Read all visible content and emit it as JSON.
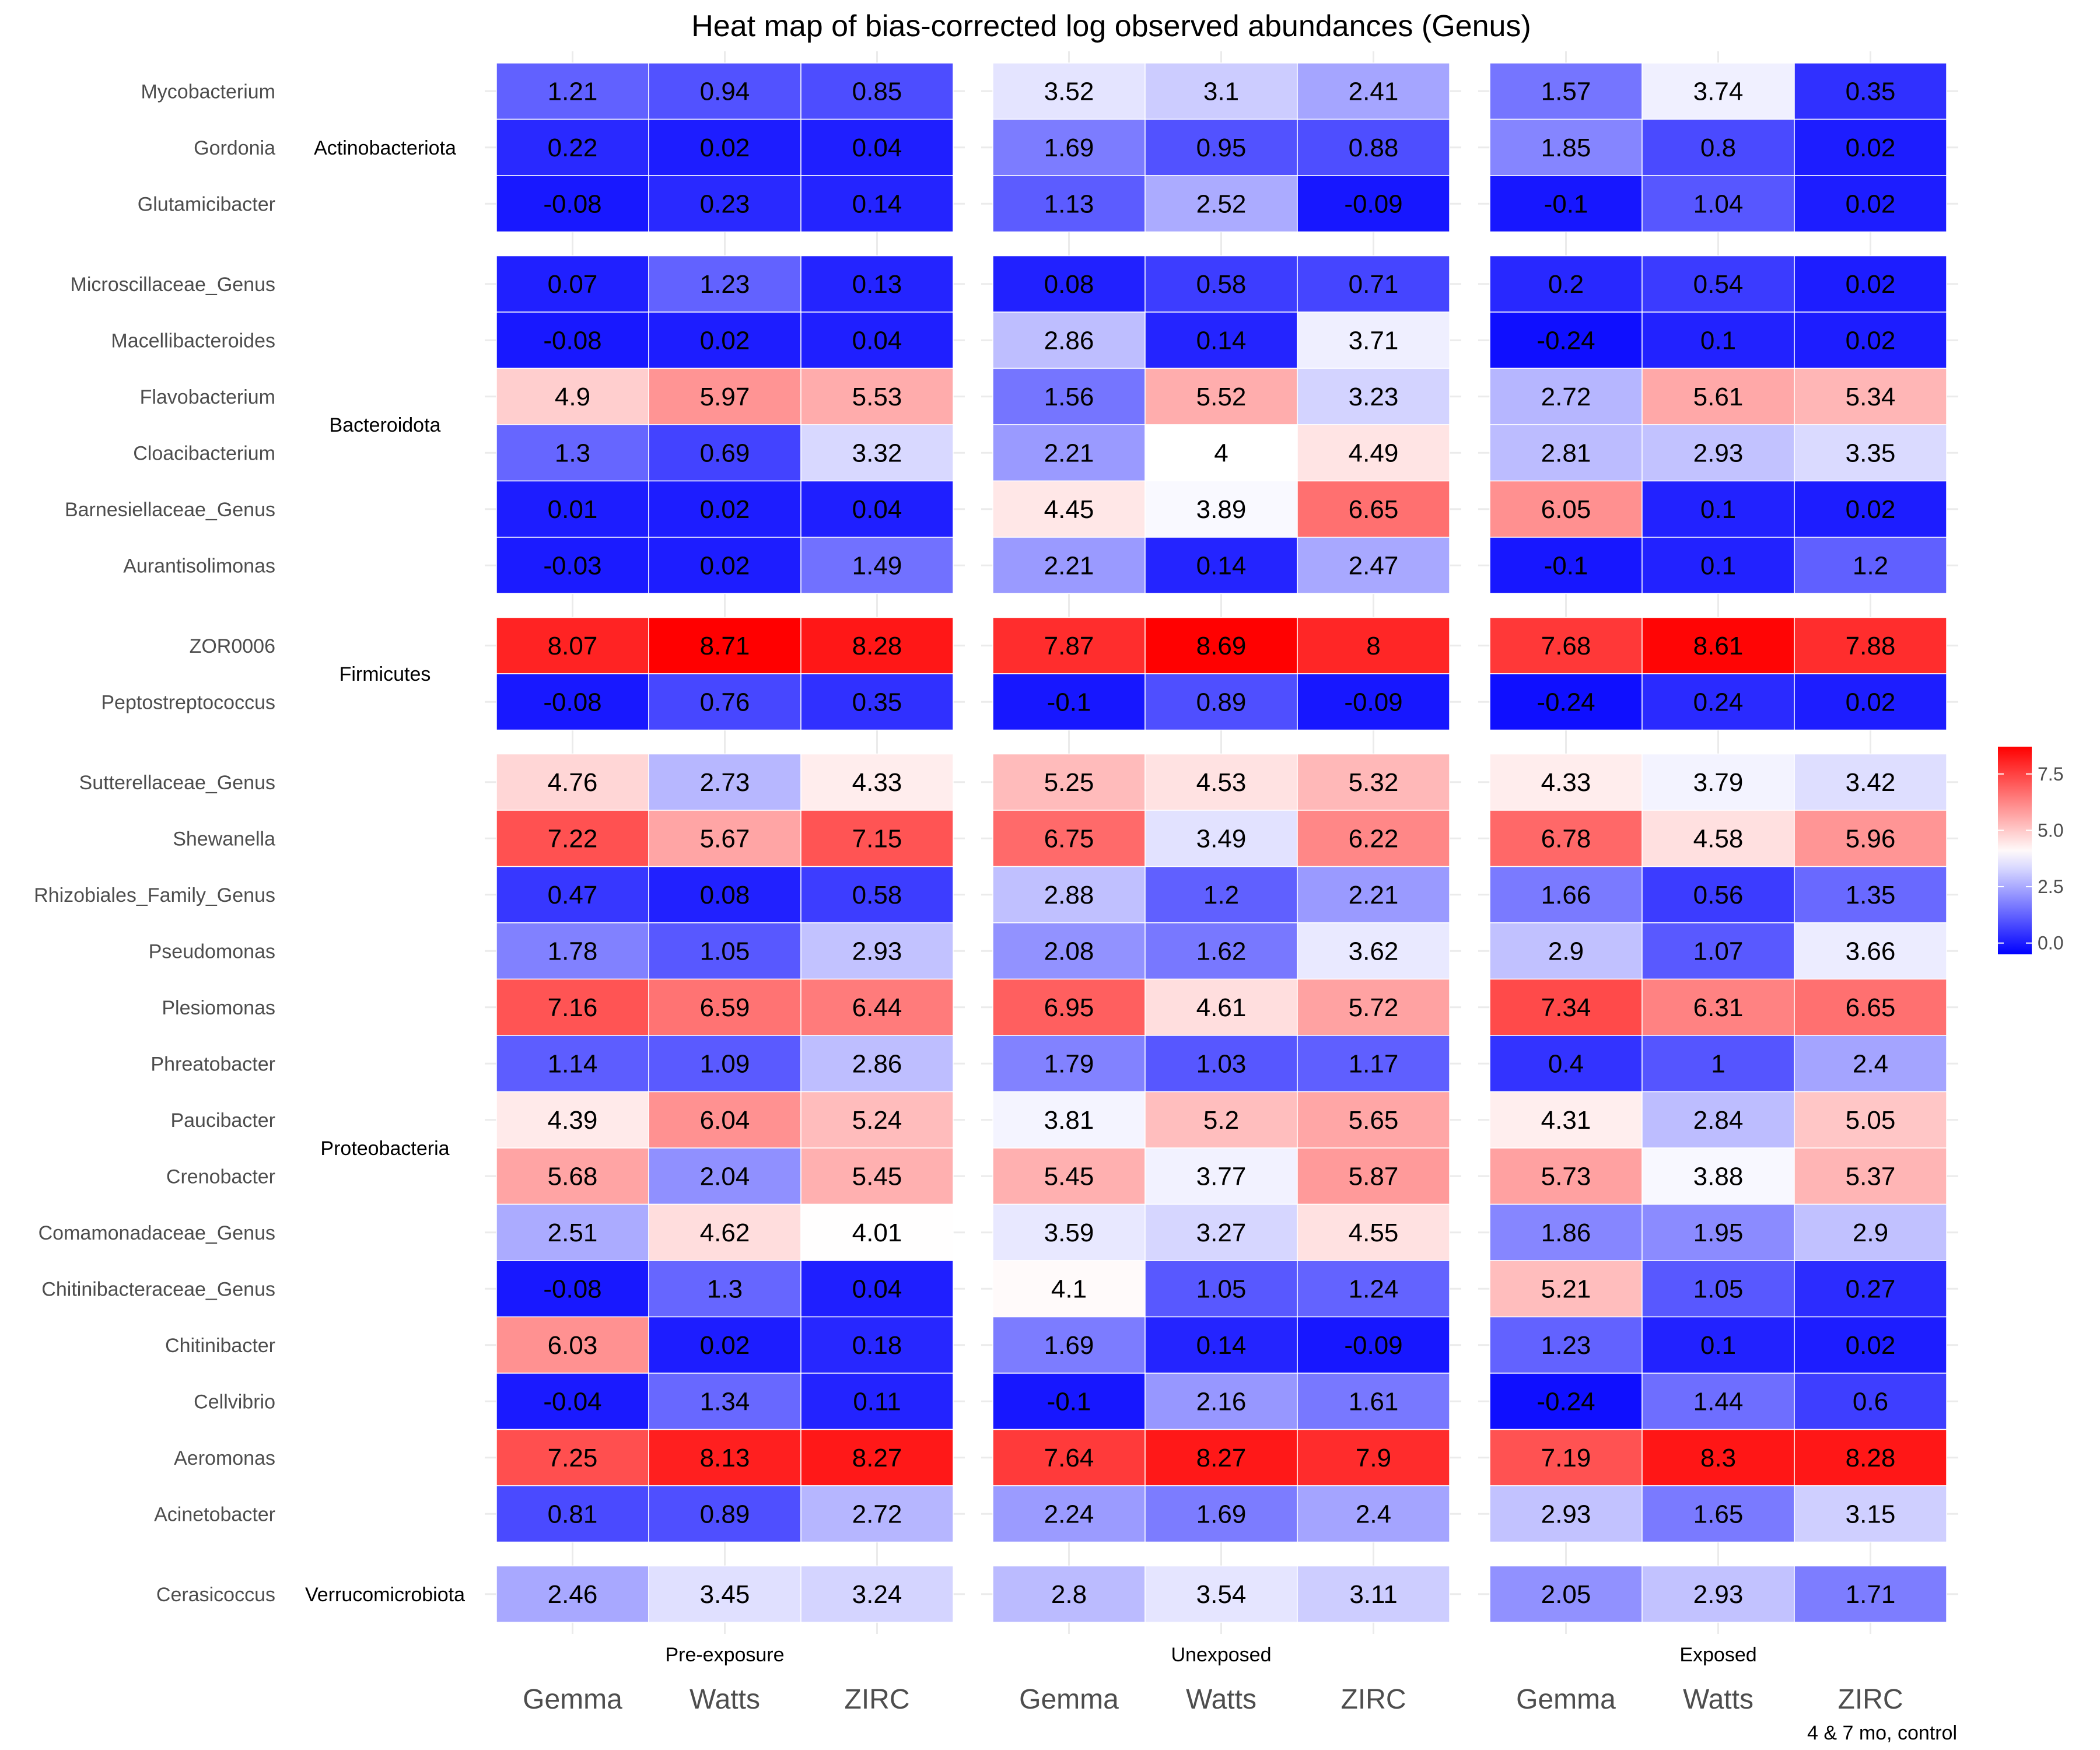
{
  "chart_data": {
    "type": "heatmap",
    "title": "Heat map of bias-corrected log observed abundances (Genus)",
    "caption": "4 & 7 mo, control",
    "x_categories": [
      "Gemma",
      "Watts",
      "ZIRC"
    ],
    "facets": [
      "Pre-exposure",
      "Unexposed",
      "Exposed"
    ],
    "color_scale": {
      "low": "#0000ff",
      "mid": "#ffffff",
      "high": "#ff0000",
      "low_value": -0.5,
      "mid_value": 4,
      "high_value": 8.71,
      "legend_ticks": [
        0,
        2.5,
        5,
        7.5
      ],
      "legend_tick_labels": [
        "0.0",
        "2.5",
        "5.0",
        "7.5"
      ]
    },
    "groups": [
      {
        "phylum": "Actinobacteriota",
        "rows": [
          {
            "genus": "Mycobacterium",
            "values": [
              [
                "1.21",
                "0.94",
                "0.85"
              ],
              [
                "3.52",
                "3.1",
                "2.41"
              ],
              [
                "1.57",
                "3.74",
                "0.35"
              ]
            ]
          },
          {
            "genus": "Gordonia",
            "values": [
              [
                "0.22",
                "0.02",
                "0.04"
              ],
              [
                "1.69",
                "0.95",
                "0.88"
              ],
              [
                "1.85",
                "0.8",
                "0.02"
              ]
            ]
          },
          {
            "genus": "Glutamicibacter",
            "values": [
              [
                "-0.08",
                "0.23",
                "0.14"
              ],
              [
                "1.13",
                "2.52",
                "-0.09"
              ],
              [
                "-0.1",
                "1.04",
                "0.02"
              ]
            ]
          }
        ]
      },
      {
        "phylum": "Bacteroidota",
        "rows": [
          {
            "genus": "Microscillaceae_Genus",
            "values": [
              [
                "0.07",
                "1.23",
                "0.13"
              ],
              [
                "0.08",
                "0.58",
                "0.71"
              ],
              [
                "0.2",
                "0.54",
                "0.02"
              ]
            ]
          },
          {
            "genus": "Macellibacteroides",
            "values": [
              [
                "-0.08",
                "0.02",
                "0.04"
              ],
              [
                "2.86",
                "0.14",
                "3.71"
              ],
              [
                "-0.24",
                "0.1",
                "0.02"
              ]
            ]
          },
          {
            "genus": "Flavobacterium",
            "values": [
              [
                "4.9",
                "5.97",
                "5.53"
              ],
              [
                "1.56",
                "5.52",
                "3.23"
              ],
              [
                "2.72",
                "5.61",
                "5.34"
              ]
            ]
          },
          {
            "genus": "Cloacibacterium",
            "values": [
              [
                "1.3",
                "0.69",
                "3.32"
              ],
              [
                "2.21",
                "4",
                "4.49"
              ],
              [
                "2.81",
                "2.93",
                "3.35"
              ]
            ]
          },
          {
            "genus": "Barnesiellaceae_Genus",
            "values": [
              [
                "0.01",
                "0.02",
                "0.04"
              ],
              [
                "4.45",
                "3.89",
                "6.65"
              ],
              [
                "6.05",
                "0.1",
                "0.02"
              ]
            ]
          },
          {
            "genus": "Aurantisolimonas",
            "values": [
              [
                "-0.03",
                "0.02",
                "1.49"
              ],
              [
                "2.21",
                "0.14",
                "2.47"
              ],
              [
                "-0.1",
                "0.1",
                "1.2"
              ]
            ]
          }
        ]
      },
      {
        "phylum": "Firmicutes",
        "rows": [
          {
            "genus": "ZOR0006",
            "values": [
              [
                "8.07",
                "8.71",
                "8.28"
              ],
              [
                "7.87",
                "8.69",
                "8"
              ],
              [
                "7.68",
                "8.61",
                "7.88"
              ]
            ]
          },
          {
            "genus": "Peptostreptococcus",
            "values": [
              [
                "-0.08",
                "0.76",
                "0.35"
              ],
              [
                "-0.1",
                "0.89",
                "-0.09"
              ],
              [
                "-0.24",
                "0.24",
                "0.02"
              ]
            ]
          }
        ]
      },
      {
        "phylum": "Proteobacteria",
        "rows": [
          {
            "genus": "Sutterellaceae_Genus",
            "values": [
              [
                "4.76",
                "2.73",
                "4.33"
              ],
              [
                "5.25",
                "4.53",
                "5.32"
              ],
              [
                "4.33",
                "3.79",
                "3.42"
              ]
            ]
          },
          {
            "genus": "Shewanella",
            "values": [
              [
                "7.22",
                "5.67",
                "7.15"
              ],
              [
                "6.75",
                "3.49",
                "6.22"
              ],
              [
                "6.78",
                "4.58",
                "5.96"
              ]
            ]
          },
          {
            "genus": "Rhizobiales_Family_Genus",
            "values": [
              [
                "0.47",
                "0.08",
                "0.58"
              ],
              [
                "2.88",
                "1.2",
                "2.21"
              ],
              [
                "1.66",
                "0.56",
                "1.35"
              ]
            ]
          },
          {
            "genus": "Pseudomonas",
            "values": [
              [
                "1.78",
                "1.05",
                "2.93"
              ],
              [
                "2.08",
                "1.62",
                "3.62"
              ],
              [
                "2.9",
                "1.07",
                "3.66"
              ]
            ]
          },
          {
            "genus": "Plesiomonas",
            "values": [
              [
                "7.16",
                "6.59",
                "6.44"
              ],
              [
                "6.95",
                "4.61",
                "5.72"
              ],
              [
                "7.34",
                "6.31",
                "6.65"
              ]
            ]
          },
          {
            "genus": "Phreatobacter",
            "values": [
              [
                "1.14",
                "1.09",
                "2.86"
              ],
              [
                "1.79",
                "1.03",
                "1.17"
              ],
              [
                "0.4",
                "1",
                "2.4"
              ]
            ]
          },
          {
            "genus": "Paucibacter",
            "values": [
              [
                "4.39",
                "6.04",
                "5.24"
              ],
              [
                "3.81",
                "5.2",
                "5.65"
              ],
              [
                "4.31",
                "2.84",
                "5.05"
              ]
            ]
          },
          {
            "genus": "Crenobacter",
            "values": [
              [
                "5.68",
                "2.04",
                "5.45"
              ],
              [
                "5.45",
                "3.77",
                "5.87"
              ],
              [
                "5.73",
                "3.88",
                "5.37"
              ]
            ]
          },
          {
            "genus": "Comamonadaceae_Genus",
            "values": [
              [
                "2.51",
                "4.62",
                "4.01"
              ],
              [
                "3.59",
                "3.27",
                "4.55"
              ],
              [
                "1.86",
                "1.95",
                "2.9"
              ]
            ]
          },
          {
            "genus": "Chitinibacteraceae_Genus",
            "values": [
              [
                "-0.08",
                "1.3",
                "0.04"
              ],
              [
                "4.1",
                "1.05",
                "1.24"
              ],
              [
                "5.21",
                "1.05",
                "0.27"
              ]
            ]
          },
          {
            "genus": "Chitinibacter",
            "values": [
              [
                "6.03",
                "0.02",
                "0.18"
              ],
              [
                "1.69",
                "0.14",
                "-0.09"
              ],
              [
                "1.23",
                "0.1",
                "0.02"
              ]
            ]
          },
          {
            "genus": "Cellvibrio",
            "values": [
              [
                "-0.04",
                "1.34",
                "0.11"
              ],
              [
                "-0.1",
                "2.16",
                "1.61"
              ],
              [
                "-0.24",
                "1.44",
                "0.6"
              ]
            ]
          },
          {
            "genus": "Aeromonas",
            "values": [
              [
                "7.25",
                "8.13",
                "8.27"
              ],
              [
                "7.64",
                "8.27",
                "7.9"
              ],
              [
                "7.19",
                "8.3",
                "8.28"
              ]
            ]
          },
          {
            "genus": "Acinetobacter",
            "values": [
              [
                "0.81",
                "0.89",
                "2.72"
              ],
              [
                "2.24",
                "1.69",
                "2.4"
              ],
              [
                "2.93",
                "1.65",
                "3.15"
              ]
            ]
          }
        ]
      },
      {
        "phylum": "Verrucomicrobiota",
        "rows": [
          {
            "genus": "Cerasicoccus",
            "values": [
              [
                "2.46",
                "3.45",
                "3.24"
              ],
              [
                "2.8",
                "3.54",
                "3.11"
              ],
              [
                "2.05",
                "2.93",
                "1.71"
              ]
            ]
          }
        ]
      }
    ]
  }
}
